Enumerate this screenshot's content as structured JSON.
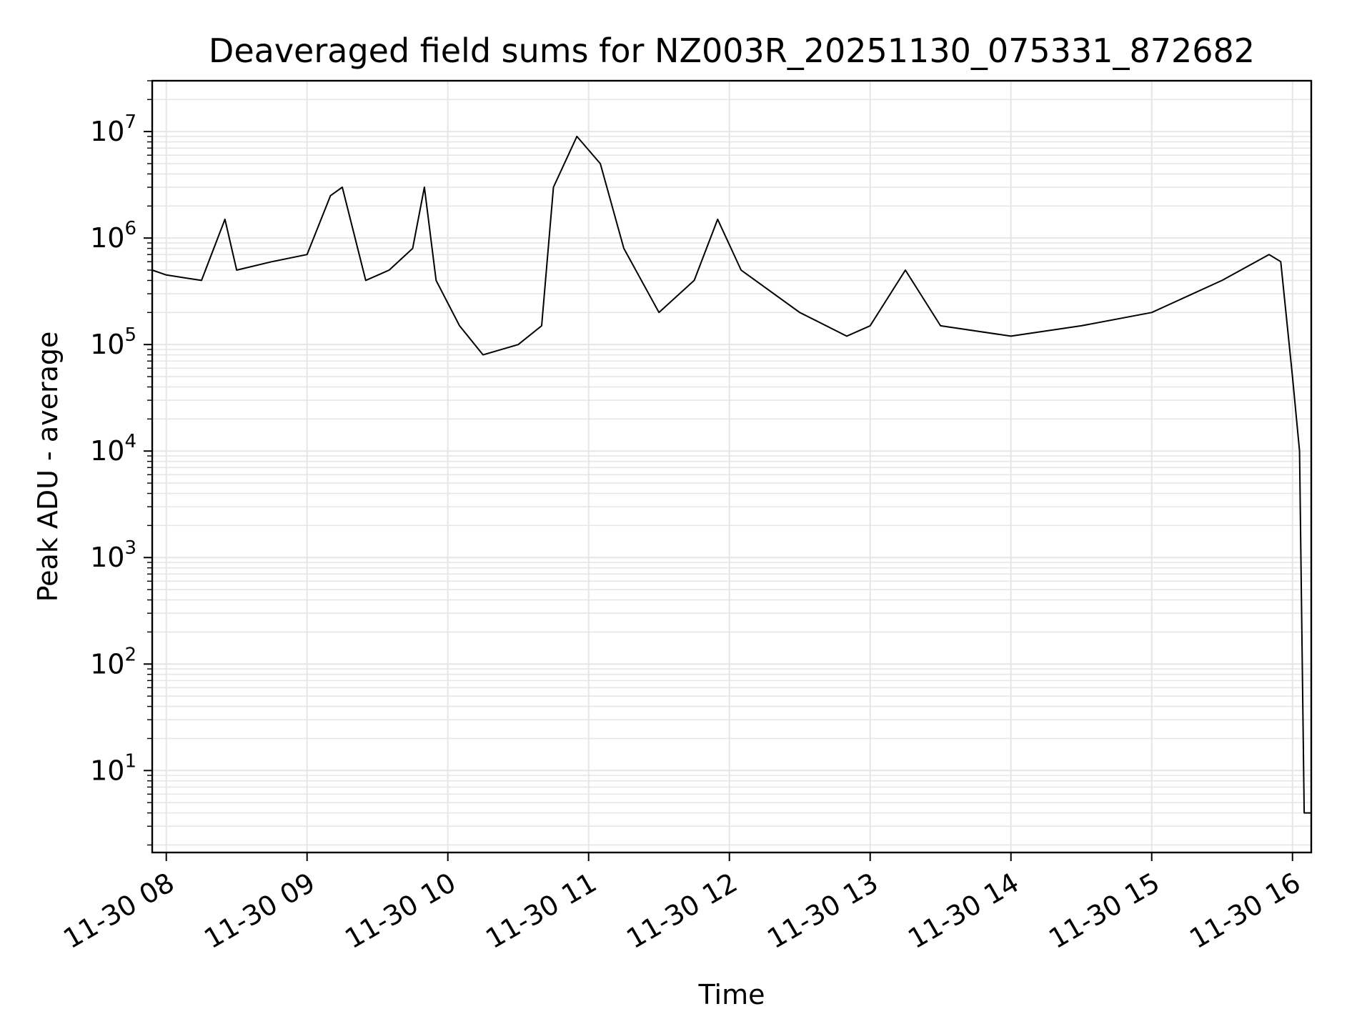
{
  "chart_data": {
    "type": "line",
    "title": "Deaveraged field sums for NZ003R_20251130_075331_872682",
    "xlabel": "Time",
    "ylabel": "Peak ADU - average",
    "y_scale": "log",
    "ylim": [
      1.7,
      30000000
    ],
    "xlim": [
      "2025-11-30 07:54",
      "2025-11-30 16:08"
    ],
    "grid": true,
    "line_color": "#000000",
    "grid_color": "#e6e6e6",
    "x_ticks": [
      {
        "t": "2025-11-30 08:00",
        "label": "11-30 08"
      },
      {
        "t": "2025-11-30 09:00",
        "label": "11-30 09"
      },
      {
        "t": "2025-11-30 10:00",
        "label": "11-30 10"
      },
      {
        "t": "2025-11-30 11:00",
        "label": "11-30 11"
      },
      {
        "t": "2025-11-30 12:00",
        "label": "11-30 12"
      },
      {
        "t": "2025-11-30 13:00",
        "label": "11-30 13"
      },
      {
        "t": "2025-11-30 14:00",
        "label": "11-30 14"
      },
      {
        "t": "2025-11-30 15:00",
        "label": "11-30 15"
      },
      {
        "t": "2025-11-30 16:00",
        "label": "11-30 16"
      }
    ],
    "y_ticks": [
      {
        "value": 10,
        "base": "10",
        "exp": "1"
      },
      {
        "value": 100,
        "base": "10",
        "exp": "2"
      },
      {
        "value": 1000,
        "base": "10",
        "exp": "3"
      },
      {
        "value": 10000,
        "base": "10",
        "exp": "4"
      },
      {
        "value": 100000,
        "base": "10",
        "exp": "5"
      },
      {
        "value": 1000000,
        "base": "10",
        "exp": "6"
      },
      {
        "value": 10000000,
        "base": "10",
        "exp": "7"
      }
    ],
    "series": [
      {
        "x": [
          "2025-11-30 07:54",
          "2025-11-30 08:00",
          "2025-11-30 08:15",
          "2025-11-30 08:25",
          "2025-11-30 08:30",
          "2025-11-30 08:45",
          "2025-11-30 09:00",
          "2025-11-30 09:10",
          "2025-11-30 09:15",
          "2025-11-30 09:25",
          "2025-11-30 09:35",
          "2025-11-30 09:45",
          "2025-11-30 09:50",
          "2025-11-30 09:55",
          "2025-11-30 10:05",
          "2025-11-30 10:15",
          "2025-11-30 10:30",
          "2025-11-30 10:40",
          "2025-11-30 10:45",
          "2025-11-30 10:55",
          "2025-11-30 11:05",
          "2025-11-30 11:15",
          "2025-11-30 11:30",
          "2025-11-30 11:45",
          "2025-11-30 11:55",
          "2025-11-30 12:05",
          "2025-11-30 12:30",
          "2025-11-30 12:50",
          "2025-11-30 13:00",
          "2025-11-30 13:15",
          "2025-11-30 13:30",
          "2025-11-30 14:00",
          "2025-11-30 14:30",
          "2025-11-30 15:00",
          "2025-11-30 15:30",
          "2025-11-30 15:50",
          "2025-11-30 15:55",
          "2025-11-30 16:00",
          "2025-11-30 16:03",
          "2025-11-30 16:05",
          "2025-11-30 16:08"
        ],
        "y": [
          500000,
          450000,
          400000,
          1500000,
          500000,
          600000,
          700000,
          2500000,
          3000000,
          400000,
          500000,
          800000,
          3000000,
          400000,
          150000,
          80000,
          100000,
          150000,
          3000000,
          9000000,
          5000000,
          800000,
          200000,
          400000,
          1500000,
          500000,
          200000,
          120000,
          150000,
          500000,
          150000,
          120000,
          150000,
          200000,
          400000,
          700000,
          600000,
          50000,
          10000,
          4,
          4
        ]
      }
    ]
  }
}
